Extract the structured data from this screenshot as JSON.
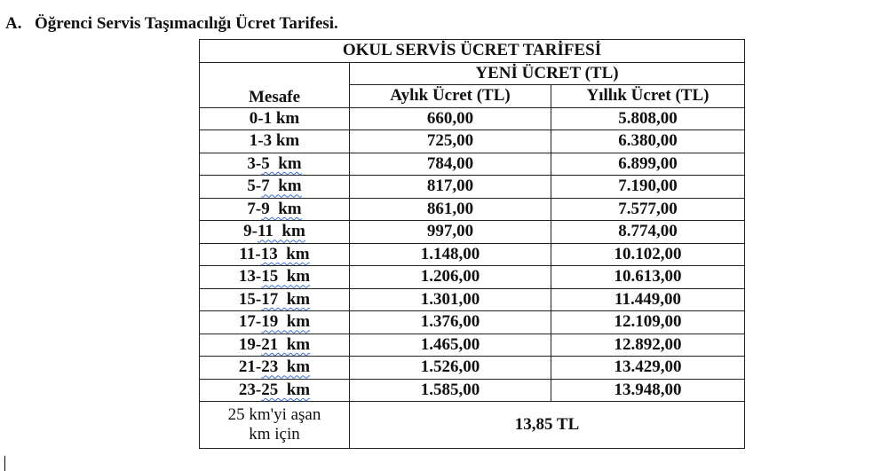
{
  "heading": {
    "number": "A.",
    "text": "Öğrenci Servis Taşımacılığı Ücret Tarifesi."
  },
  "table": {
    "title": "OKUL SERVİS ÜCRET TARİFESİ",
    "group_header": "YENİ ÜCRET (TL)",
    "columns": [
      "Mesafe",
      "Aylık Ücret (TL)",
      "Yıllık Ücret (TL)"
    ],
    "rows": [
      {
        "a": "0-1 km",
        "b": "",
        "m": "660,00",
        "y": "5.808,00"
      },
      {
        "a": "1-3 km",
        "b": "",
        "m": "725,00",
        "y": "6.380,00"
      },
      {
        "a": "3-",
        "b": "5  km",
        "m": "784,00",
        "y": "6.899,00"
      },
      {
        "a": "5-",
        "b": "7  km",
        "m": "817,00",
        "y": "7.190,00"
      },
      {
        "a": "7-",
        "b": "9  km",
        "m": "861,00",
        "y": "7.577,00"
      },
      {
        "a": "9-",
        "b": "11  km",
        "m": "997,00",
        "y": "8.774,00"
      },
      {
        "a": "11-",
        "b": "13  km",
        "m": "1.148,00",
        "y": "10.102,00"
      },
      {
        "a": "13-",
        "b": "15  km",
        "m": "1.206,00",
        "y": "10.613,00"
      },
      {
        "a": "15-",
        "b": "17  km",
        "m": "1.301,00",
        "y": "11.449,00"
      },
      {
        "a": "17-",
        "b": "19  km",
        "m": "1.376,00",
        "y": "12.109,00"
      },
      {
        "a": "19-",
        "b": "21  km",
        "m": "1.465,00",
        "y": "12.892,00"
      },
      {
        "a": "21-",
        "b": "23  km",
        "m": "1.526,00",
        "y": "13.429,00"
      },
      {
        "a": "23-",
        "b": "25  km",
        "m": "1.585,00",
        "y": "13.948,00"
      }
    ],
    "extra": {
      "label_line1": "25 km'yi aşan",
      "label_line2": "km için",
      "value": "13,85 TL"
    }
  }
}
